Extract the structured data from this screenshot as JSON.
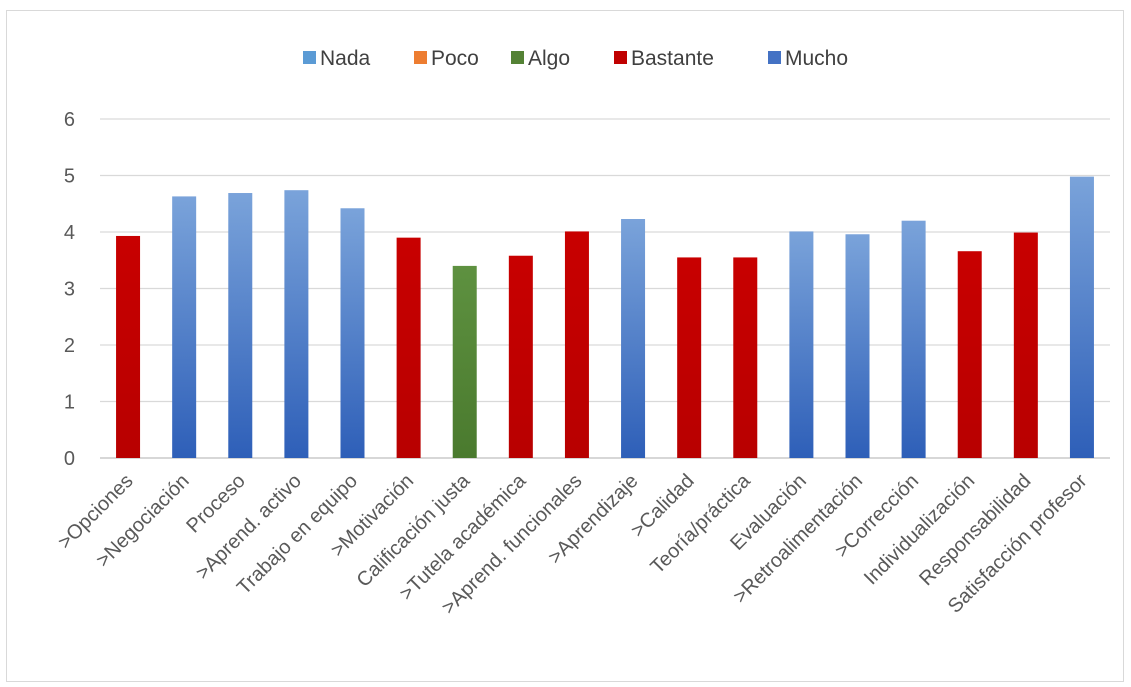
{
  "chart_data": {
    "type": "bar",
    "title": "",
    "xlabel": "",
    "ylabel": "",
    "ylim": [
      0,
      6
    ],
    "yticks": [
      0,
      1,
      2,
      3,
      4,
      5,
      6
    ],
    "grid": true,
    "legend_position": "top",
    "legend": [
      {
        "name": "Nada",
        "color": "#5b9bd5"
      },
      {
        "name": "Poco",
        "color": "#ed7d31"
      },
      {
        "name": "Algo",
        "color": "#548235"
      },
      {
        "name": "Bastante",
        "color": "#c00000"
      },
      {
        "name": "Mucho",
        "color": "#4472c4"
      }
    ],
    "categories": [
      ">Opciones",
      ">Negociación",
      "Proceso",
      ">Aprend. activo",
      "Trabajo en equipo",
      ">Motivación",
      "Calificación justa",
      ">Tutela académica",
      ">Aprend. funcionales",
      ">Aprendizaje",
      ">Calidad",
      "Teoría/práctica",
      "Evaluación",
      ">Retroalimentación",
      ">Corrección",
      "Individualización",
      "Responsabilidad",
      "Satisfacción profesor"
    ],
    "values": [
      3.93,
      4.63,
      4.69,
      4.74,
      4.42,
      3.9,
      3.4,
      3.58,
      4.01,
      4.23,
      3.55,
      3.55,
      4.01,
      3.96,
      4.2,
      3.66,
      3.99,
      4.98
    ],
    "bar_levels": [
      "Bastante",
      "Mucho",
      "Mucho",
      "Mucho",
      "Mucho",
      "Bastante",
      "Algo",
      "Bastante",
      "Bastante",
      "Mucho",
      "Bastante",
      "Bastante",
      "Mucho",
      "Mucho",
      "Mucho",
      "Bastante",
      "Bastante",
      "Mucho"
    ]
  }
}
